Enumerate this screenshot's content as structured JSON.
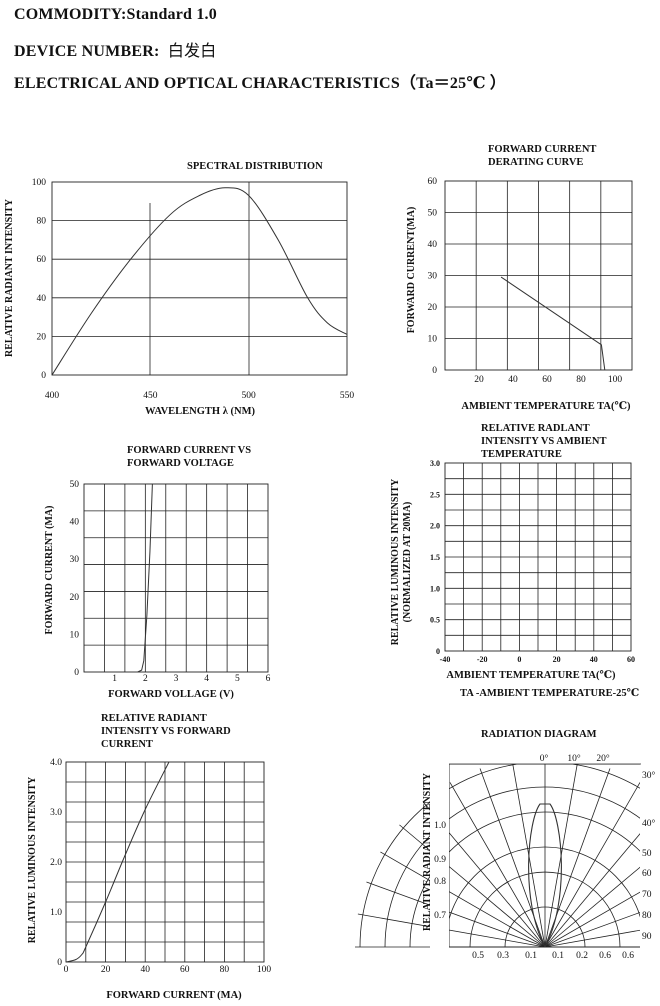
{
  "header": {
    "commodity_label": "COMMODITY:",
    "commodity_value": "Standard 1.0",
    "device_label": "DEVICE NUMBER:",
    "device_value": "白发白",
    "characteristics": "ELECTRICAL AND OPTICAL CHARACTERISTICS（Ta＝25℃ ）"
  },
  "chart_data": [
    {
      "id": "spectral",
      "type": "line",
      "title": "SPECTRAL DISTRIBUTION",
      "xlabel": "WAVELENGTH λ  (NM)",
      "ylabel": "RELATIVE RADIANT INTENSITY",
      "xlim": [
        400,
        550
      ],
      "ylim": [
        0,
        100
      ],
      "xticks": [
        "400",
        "450",
        "500",
        "550"
      ],
      "yticks": [
        "0",
        "20",
        "40",
        "60",
        "80",
        "100"
      ],
      "x": [
        400,
        420,
        440,
        460,
        475,
        488,
        500,
        515,
        530,
        540,
        550
      ],
      "y": [
        0,
        32,
        60,
        83,
        93,
        97,
        93,
        70,
        40,
        27,
        21
      ]
    },
    {
      "id": "derating",
      "type": "line",
      "title": "FORWARD CURRENT DERATING CURVE",
      "title_lines": [
        "FORWARD CURRENT",
        "DERATING CURVE"
      ],
      "xlabel": "AMBIENT TEMPERATURE TA(℃)",
      "ylabel": "FORWARD CURRENT(MA)",
      "xlim": [
        0,
        110
      ],
      "ylim": [
        0,
        60
      ],
      "xticks": [
        "20",
        "40",
        "60",
        "80",
        "100"
      ],
      "yticks": [
        "0",
        "10",
        "20",
        "30",
        "40",
        "50",
        "60"
      ],
      "x": [
        33,
        92,
        94
      ],
      "y": [
        29.5,
        8,
        0
      ]
    },
    {
      "id": "iv",
      "type": "line",
      "title": "FORWARD CURRENT VS FORWARD VOLTAGE",
      "title_lines": [
        "FORWARD  CURRENT VS",
        "FORWARD  VOLTAGE"
      ],
      "xlabel": "FORWARD  VOLLAGE (V)",
      "ylabel": "FORWARD CURRENT (MA)",
      "xlim": [
        0,
        6
      ],
      "ylim": [
        0,
        50
      ],
      "xticks": [
        "1",
        "2",
        "3",
        "4",
        "5",
        "6"
      ],
      "yticks": [
        "0",
        "10",
        "20",
        "30",
        "40",
        "50"
      ],
      "x": [
        1.75,
        1.88,
        1.95,
        2.05,
        2.15,
        2.23
      ],
      "y": [
        0,
        0.5,
        3,
        15,
        32,
        50
      ]
    },
    {
      "id": "temp_intensity",
      "type": "line",
      "title": "RELATIVE RADLANT INTENSITY VS AMBIENT TEMPERATURE",
      "title_lines": [
        "RELATIVE  RADLANT",
        "INTENSITY  VS  AMBIENT",
        "TEMPERATURE"
      ],
      "xlabel": "AMBIENT TEMPERATURE TA(℃)",
      "ylabel": "RELATIVE LUMINOUS INTENSITY",
      "ylabel2": "(NORMALIZED AT 20MA)",
      "note": "TA -AMBIENT TEMPERATURE-25℃",
      "xlim": [
        -40,
        60
      ],
      "ylim": [
        0,
        3.0
      ],
      "xticks": [
        "-40",
        "-20",
        "0",
        "20",
        "40",
        "60"
      ],
      "yticks": [
        "0",
        "0.5",
        "1.0",
        "1.5",
        "2.0",
        "2.5",
        "3.0"
      ],
      "x": [],
      "y": []
    },
    {
      "id": "if_intensity",
      "type": "line",
      "title": "RELATIVE RADIANT INTENSITY VS FORWARD CURRENT",
      "title_lines": [
        "RELATIVE  RADIANT",
        "INTENSITY  VS  FORWARD",
        "CURRENT"
      ],
      "xlabel": "FORWARD CURRENT (MA)",
      "ylabel": "RELATIVE LUMINOUS INTENSITY",
      "xlim": [
        0,
        100
      ],
      "ylim": [
        0,
        4.0
      ],
      "xticks": [
        "0",
        "20",
        "40",
        "60",
        "80",
        "100"
      ],
      "yticks": [
        "0",
        "1.0",
        "2.0",
        "3.0",
        "4.0"
      ],
      "x": [
        0,
        5,
        8,
        10,
        20,
        30,
        40,
        52
      ],
      "y": [
        0,
        0.05,
        0.15,
        0.3,
        1.2,
        2.15,
        3.05,
        4.0
      ]
    },
    {
      "id": "radiation",
      "type": "polar",
      "title": "RADIATION DIAGRAM",
      "ylabel": "RELATIVE RADIANT INTENSITY",
      "angle_labels_top": [
        "0°",
        "10°",
        "20°"
      ],
      "angle_labels_right": [
        "30°",
        "40°",
        "50",
        "60",
        "70",
        "80",
        "90"
      ],
      "radial_labels_left": [
        "1.0",
        "0.9",
        "0.8",
        "0.7"
      ],
      "bottom_labels": [
        "0.5",
        "0.3",
        "0.1",
        "0.1",
        "0.2",
        "0.6",
        "0.6"
      ]
    }
  ]
}
